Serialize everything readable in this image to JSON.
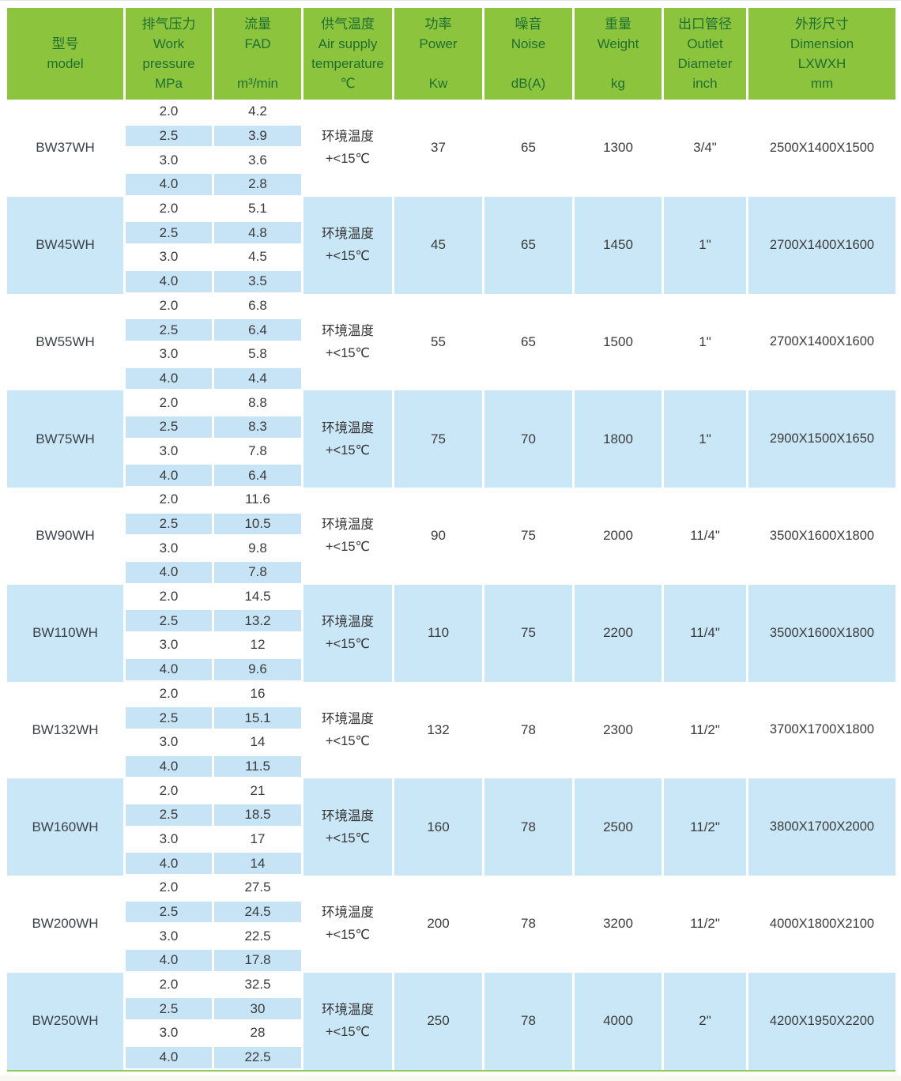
{
  "table": {
    "header": {
      "columns": [
        {
          "id": "model",
          "lines": [
            "型号",
            "model"
          ]
        },
        {
          "id": "pressure",
          "lines": [
            "排气压力",
            "Work",
            "pressure",
            "MPa"
          ]
        },
        {
          "id": "fad",
          "lines": [
            "流量",
            "FAD",
            "",
            "m³/min"
          ]
        },
        {
          "id": "temperature",
          "lines": [
            "供气温度",
            "Air supply",
            "temperature",
            "℃"
          ]
        },
        {
          "id": "power",
          "lines": [
            "功率",
            "Power",
            "",
            "Kw"
          ]
        },
        {
          "id": "noise",
          "lines": [
            "噪音",
            "Noise",
            "",
            "dB(A)"
          ]
        },
        {
          "id": "weight",
          "lines": [
            "重量",
            "Weight",
            "",
            "kg"
          ]
        },
        {
          "id": "outlet",
          "lines": [
            "出口管径",
            "Outlet",
            "Diameter",
            "inch"
          ]
        },
        {
          "id": "dimension",
          "lines": [
            "外形尺寸",
            "Dimension",
            "LXWXH",
            "mm"
          ]
        }
      ]
    },
    "temperature_note": [
      "环境温度",
      "+<15℃"
    ],
    "models": [
      {
        "name": "BW37WH",
        "pressures": [
          "2.0",
          "2.5",
          "3.0",
          "4.0"
        ],
        "fad": [
          "4.2",
          "3.9",
          "3.6",
          "2.8"
        ],
        "power": "37",
        "noise": "65",
        "weight": "1300",
        "outlet": "3/4\"",
        "dimension": "2500X1400X1500"
      },
      {
        "name": "BW45WH",
        "pressures": [
          "2.0",
          "2.5",
          "3.0",
          "4.0"
        ],
        "fad": [
          "5.1",
          "4.8",
          "4.5",
          "3.5"
        ],
        "power": "45",
        "noise": "65",
        "weight": "1450",
        "outlet": "1\"",
        "dimension": "2700X1400X1600"
      },
      {
        "name": "BW55WH",
        "pressures": [
          "2.0",
          "2.5",
          "3.0",
          "4.0"
        ],
        "fad": [
          "6.8",
          "6.4",
          "5.8",
          "4.4"
        ],
        "power": "55",
        "noise": "65",
        "weight": "1500",
        "outlet": "1\"",
        "dimension": "2700X1400X1600"
      },
      {
        "name": "BW75WH",
        "pressures": [
          "2.0",
          "2.5",
          "3.0",
          "4.0"
        ],
        "fad": [
          "8.8",
          "8.3",
          "7.8",
          "6.4"
        ],
        "power": "75",
        "noise": "70",
        "weight": "1800",
        "outlet": "1\"",
        "dimension": "2900X1500X1650"
      },
      {
        "name": "BW90WH",
        "pressures": [
          "2.0",
          "2.5",
          "3.0",
          "4.0"
        ],
        "fad": [
          "11.6",
          "10.5",
          "9.8",
          "7.8"
        ],
        "power": "90",
        "noise": "75",
        "weight": "2000",
        "outlet": "11/4\"",
        "dimension": "3500X1600X1800"
      },
      {
        "name": "BW110WH",
        "pressures": [
          "2.0",
          "2.5",
          "3.0",
          "4.0"
        ],
        "fad": [
          "14.5",
          "13.2",
          "12",
          "9.6"
        ],
        "power": "110",
        "noise": "75",
        "weight": "2200",
        "outlet": "11/4\"",
        "dimension": "3500X1600X1800"
      },
      {
        "name": "BW132WH",
        "pressures": [
          "2.0",
          "2.5",
          "3.0",
          "4.0"
        ],
        "fad": [
          "16",
          "15.1",
          "14",
          "11.5"
        ],
        "power": "132",
        "noise": "78",
        "weight": "2300",
        "outlet": "11/2\"",
        "dimension": "3700X1700X1800"
      },
      {
        "name": "BW160WH",
        "pressures": [
          "2.0",
          "2.5",
          "3.0",
          "4.0"
        ],
        "fad": [
          "21",
          "18.5",
          "17",
          "14"
        ],
        "power": "160",
        "noise": "78",
        "weight": "2500",
        "outlet": "11/2\"",
        "dimension": "3800X1700X2000"
      },
      {
        "name": "BW200WH",
        "pressures": [
          "2.0",
          "2.5",
          "3.0",
          "4.0"
        ],
        "fad": [
          "27.5",
          "24.5",
          "22.5",
          "17.8"
        ],
        "power": "200",
        "noise": "78",
        "weight": "3200",
        "outlet": "11/2\"",
        "dimension": "4000X1800X2100"
      },
      {
        "name": "BW250WH",
        "pressures": [
          "2.0",
          "2.5",
          "3.0",
          "4.0"
        ],
        "fad": [
          "32.5",
          "30",
          "28",
          "22.5"
        ],
        "power": "250",
        "noise": "78",
        "weight": "4000",
        "outlet": "2\"",
        "dimension": "4200X1950X2200"
      }
    ]
  },
  "colors": {
    "header_green": "#8cc53d",
    "header_text_green": "#1f6e33",
    "stripe_blue": "#c6e4f6",
    "block_blue": "#cae7f7",
    "accent_line_green": "#90c95b",
    "body_text": "#3a3a3a"
  }
}
